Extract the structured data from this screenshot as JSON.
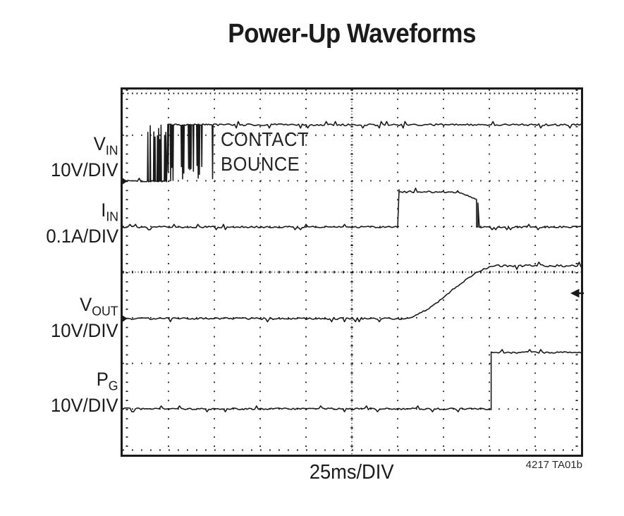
{
  "title": "Power-Up Waveforms",
  "x_axis_label": "25ms/DIV",
  "ref_code": "4217 TA01b",
  "annotation": {
    "line1": "CONTACT",
    "line2": "BOUNCE"
  },
  "channels": [
    {
      "sym": "V",
      "sub": "IN",
      "scale": "10V/DIV"
    },
    {
      "sym": "I",
      "sub": "IN",
      "scale": "0.1A/DIV"
    },
    {
      "sym": "V",
      "sub": "OUT",
      "scale": "10V/DIV"
    },
    {
      "sym": "P",
      "sub": "G",
      "scale": "10V/DIV"
    }
  ],
  "colors": {
    "trace": "#1a1a1a",
    "background": "#ffffff"
  },
  "chart_data": {
    "type": "line",
    "title": "Power-Up Waveforms",
    "xlabel": "25ms/DIV",
    "x_divisions": 10,
    "y_divisions": 8,
    "time_per_div_ms": 25,
    "x_range_ms": [
      0,
      250
    ],
    "grid": "oscilloscope dotted graticule with dense center axes and edge tick rows",
    "legend_position": "left-of-plot channel labels",
    "annotation": {
      "text": "CONTACT BOUNCE",
      "applies_to": "V_IN",
      "time_span_ms": [
        13.5,
        50
      ]
    },
    "marker": {
      "shape": "left-arrow",
      "edge": "right",
      "y_div": 4.463
    },
    "series": [
      {
        "name": "V_IN",
        "scale": "10V/DIV",
        "baseline_y_div": 2.008,
        "high_y_div": 0.772,
        "step_V_approx": 12.4,
        "events_ms": {
          "contact_start": 13.5,
          "bounce_end": 50
        },
        "behavior": "0V, contact bounce 13.5-50ms toggling between 0V and ~12V, then steady high with noise"
      },
      {
        "name": "I_IN",
        "scale": "0.1A/DIV",
        "baseline_y_div": 3.012,
        "high_y_div": 2.24,
        "pulse_A_approx": 0.077,
        "events_ms": {
          "rise": 150,
          "fall": 193,
          "droop_start": 183
        },
        "behavior": "0A, inrush current pulse ~77mA from 150ms to 193ms with slight droop before falling back to 0A"
      },
      {
        "name": "V_OUT",
        "scale": "10V/DIV",
        "baseline_y_div": 5.019,
        "settle_y_div": 3.861,
        "final_V_approx": 11.6,
        "events_ms": {
          "ramp_start": 152,
          "ramp_end": 205
        },
        "behavior": "0V, soft-start S-shaped ramp from 152ms to 205ms, settles at ~11.6V"
      },
      {
        "name": "P_G",
        "scale": "10V/DIV",
        "baseline_y_div": 6.996,
        "high_y_div": 5.761,
        "step_V_approx": 12.4,
        "events_ms": {
          "assert": 201
        },
        "behavior": "low until 201ms, then steps high (power-good asserted)"
      }
    ]
  }
}
